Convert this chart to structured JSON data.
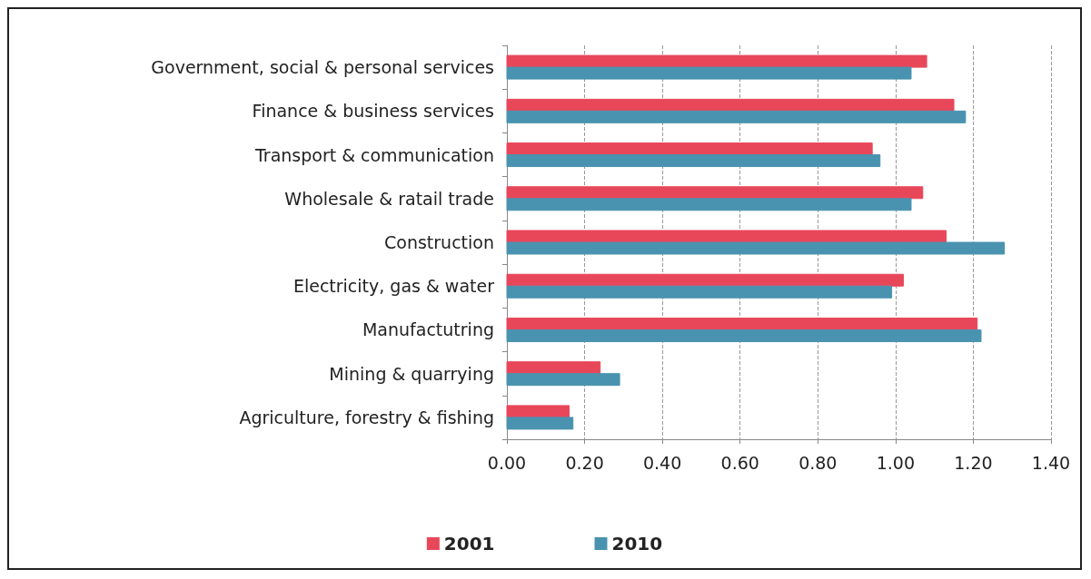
{
  "chart_data": {
    "type": "bar",
    "orientation": "horizontal",
    "categories": [
      "Government, social & personal services",
      "Finance & business services",
      "Transport & communication",
      "Wholesale & ratail trade",
      "Construction",
      "Electricity, gas & water",
      "Manufactutring",
      "Mining & quarrying",
      "Agriculture, forestry & fishing"
    ],
    "series": [
      {
        "name": "2001",
        "color": "#e8475a",
        "values": [
          1.08,
          1.15,
          0.94,
          1.07,
          1.13,
          1.02,
          1.21,
          0.24,
          0.16
        ]
      },
      {
        "name": "2010",
        "color": "#4a93b0",
        "values": [
          1.04,
          1.18,
          0.96,
          1.04,
          1.28,
          0.99,
          1.22,
          0.29,
          0.17
        ]
      }
    ],
    "xlim": [
      0,
      1.4
    ],
    "xticks": [
      {
        "value": 0,
        "label": "0.00"
      },
      {
        "value": 0.2,
        "label": "0.20"
      },
      {
        "value": 0.4,
        "label": "0.40"
      },
      {
        "value": 0.6,
        "label": "0.60"
      },
      {
        "value": 0.8,
        "label": "0.80"
      },
      {
        "value": 1,
        "label": "1.00"
      },
      {
        "value": 1.2,
        "label": "1.20"
      },
      {
        "value": 1.4,
        "label": "1.40"
      }
    ],
    "grid": "x",
    "legend": "bottom"
  }
}
